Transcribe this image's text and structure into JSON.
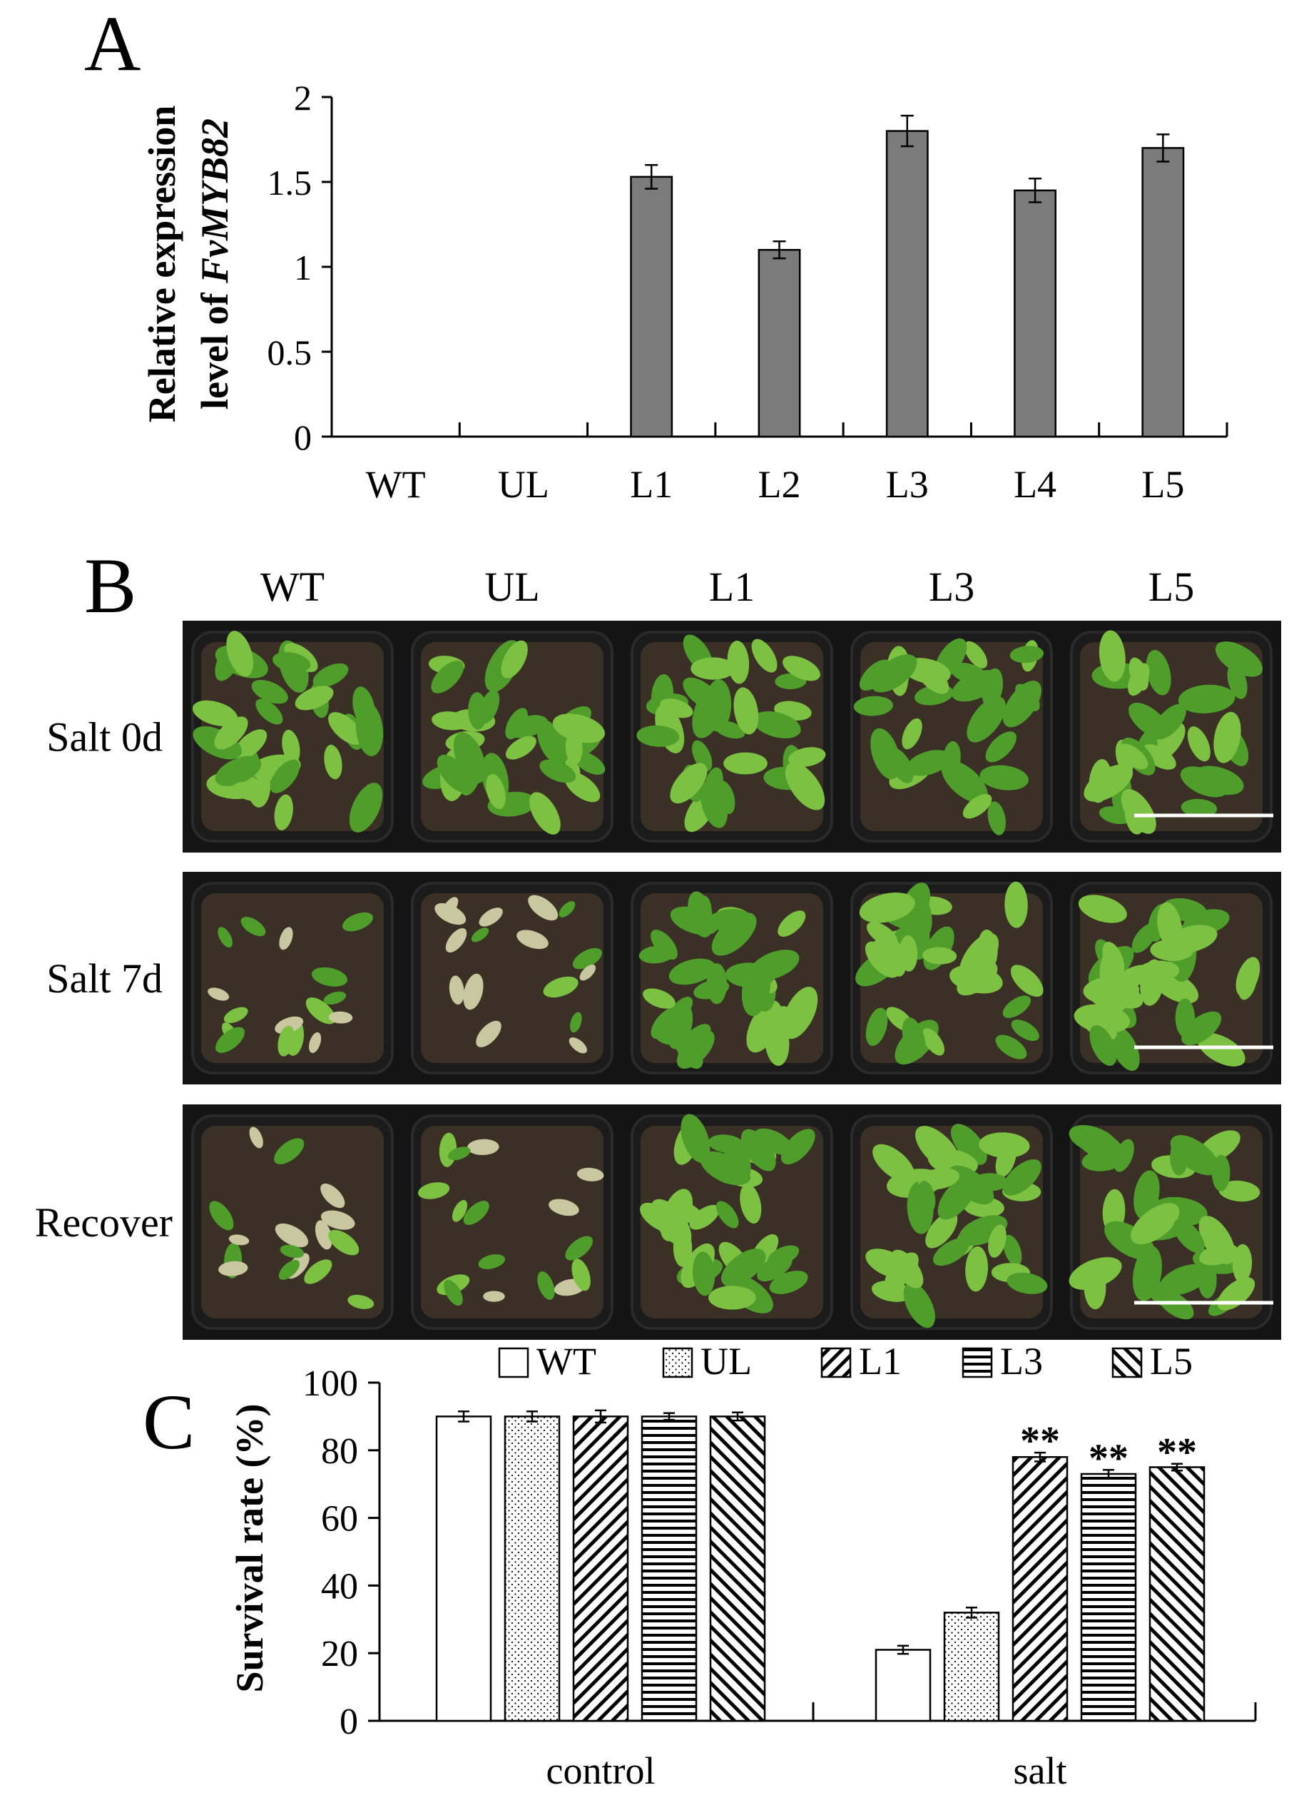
{
  "panels": {
    "a": "A",
    "b": "B",
    "c": "C"
  },
  "colors": {
    "bar_gray": "#7b7b7b",
    "pot": "#1b1b1b",
    "soil": "#3a3026",
    "leaf": "#4f9e2c",
    "leaf_light": "#7cc142",
    "stressed": "#c9c7a0"
  },
  "photos": {
    "columns": [
      "WT",
      "UL",
      "L1",
      "L3",
      "L5"
    ],
    "rows": [
      "Salt 0d",
      "Salt 7d",
      "Recover"
    ]
  },
  "chart_data": [
    {
      "type": "bar",
      "panel": "A",
      "ylabel_line1": "Relative expression",
      "ylabel_line2_prefix": "level of ",
      "ylabel_line2_gene": "FvMYB82",
      "categories": [
        "WT",
        "UL",
        "L1",
        "L2",
        "L3",
        "L4",
        "L5"
      ],
      "values": [
        0,
        0,
        1.53,
        1.1,
        1.8,
        1.45,
        1.7
      ],
      "errors": [
        0,
        0,
        0.07,
        0.05,
        0.09,
        0.07,
        0.08
      ],
      "ylim": [
        0,
        2
      ],
      "yticks": [
        "0",
        "0.5",
        "1",
        "1.5",
        "2"
      ],
      "ytick_values": [
        0,
        0.5,
        1,
        1.5,
        2
      ]
    },
    {
      "type": "bar",
      "panel": "C",
      "ylabel": "Survival rate (%)",
      "categories": [
        "control",
        "salt"
      ],
      "series": [
        {
          "name": "WT",
          "pattern": "none",
          "values": [
            90,
            21
          ],
          "errors": [
            1.5,
            1.2
          ]
        },
        {
          "name": "UL",
          "pattern": "dots",
          "values": [
            90,
            32
          ],
          "errors": [
            1.5,
            1.5
          ]
        },
        {
          "name": "L1",
          "pattern": "diag-up",
          "values": [
            90,
            78
          ],
          "errors": [
            1.8,
            1.3
          ]
        },
        {
          "name": "L3",
          "pattern": "horizontal",
          "values": [
            90,
            73
          ],
          "errors": [
            1.0,
            1.2
          ]
        },
        {
          "name": "L5",
          "pattern": "diag-down",
          "values": [
            90,
            75
          ],
          "errors": [
            1.2,
            1.0
          ]
        }
      ],
      "significance": [
        [
          null,
          null
        ],
        [
          null,
          null
        ],
        [
          null,
          "**"
        ],
        [
          null,
          "**"
        ],
        [
          null,
          "**"
        ]
      ],
      "ylim": [
        0,
        100
      ],
      "yticks": [
        "0",
        "20",
        "40",
        "60",
        "80",
        "100"
      ],
      "ytick_values": [
        0,
        20,
        40,
        60,
        80,
        100
      ],
      "legend_position": "top"
    }
  ]
}
